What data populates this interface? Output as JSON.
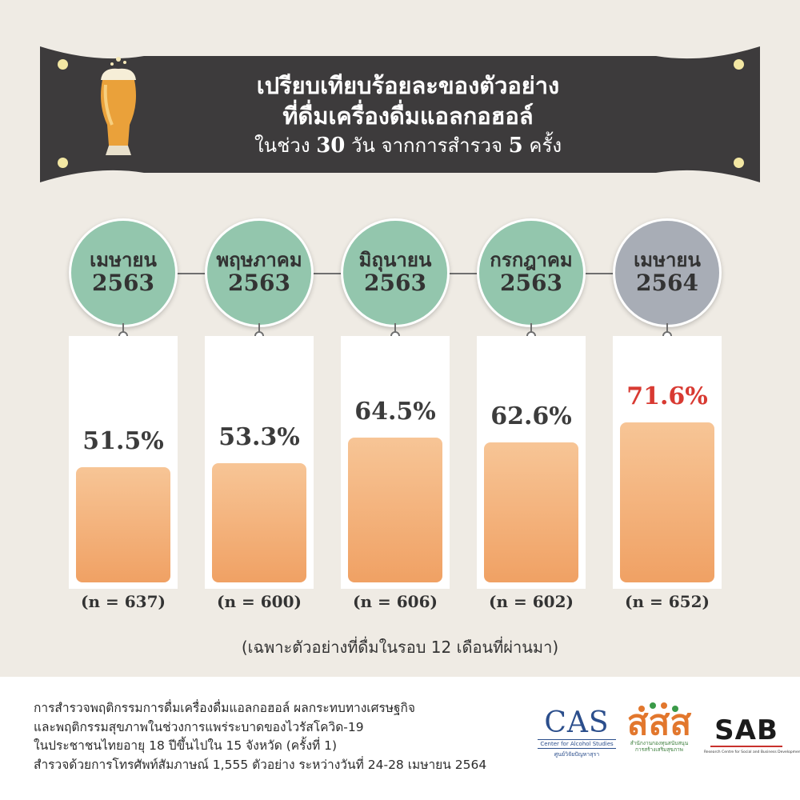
{
  "title": {
    "line1": "เปรียบเทียบร้อยละของตัวอย่าง",
    "line2": "ที่ดื่มเครื่องดื่มแอลกอฮอล์",
    "line3_pre": "ในช่วง ",
    "line3_days": "30",
    "line3_mid": " วัน จากการสำรวจ ",
    "line3_times": "5",
    "line3_post": " ครั้ง"
  },
  "chart_data": {
    "type": "bar",
    "categories": [
      {
        "month": "เมษายน",
        "year": "2563"
      },
      {
        "month": "พฤษภาคม",
        "year": "2563"
      },
      {
        "month": "มิถุนายน",
        "year": "2563"
      },
      {
        "month": "กรกฎาคม",
        "year": "2563"
      },
      {
        "month": "เมษายน",
        "year": "2564"
      }
    ],
    "values": [
      51.5,
      53.3,
      64.5,
      62.6,
      71.6
    ],
    "value_labels": [
      "51.5%",
      "53.3%",
      "64.5%",
      "62.6%",
      "71.6%"
    ],
    "n_labels": [
      "(n = 637)",
      "(n = 600)",
      "(n = 606)",
      "(n = 602)",
      "(n = 652)"
    ],
    "highlight_index": 4,
    "highlight_color": "#d83a32",
    "bar_color": "#f2aa6e"
  },
  "note": "(เฉพาะตัวอย่างที่ดื่มในรอบ 12 เดือนที่ผ่านมา)",
  "footer": {
    "lines": [
      "การสำรวจพฤติกรรมการดื่มเครื่องดื่มแอลกอฮอล์ ผลกระทบทางเศรษฐกิจ",
      "และพฤติกรรมสุขภาพในช่วงการแพร่ระบาดของไวรัสโควิด-19",
      "ในประชาชนไทยอายุ 18 ปีขึ้นไปใน 15 จังหวัด (ครั้งที่ 1)",
      "สำรวจด้วยการโทรศัพท์สัมภาษณ์ 1,555 ตัวอย่าง ระหว่างวันที่ 24-28 เมษายน 2564"
    ]
  },
  "logos": {
    "cas": {
      "name": "CAS",
      "sub1": "Center for Alcohol Studies",
      "sub2": "ศูนย์วิจัยปัญหาสุรา"
    },
    "sss": {
      "name": "สสส",
      "sub1": "สำนักงานกองทุนสนับสนุน",
      "sub2": "การสร้างเสริมสุขภาพ"
    },
    "sab": {
      "name": "SAB",
      "sub": "Research Centre for Social and Business Development Co.,Ltd."
    }
  }
}
